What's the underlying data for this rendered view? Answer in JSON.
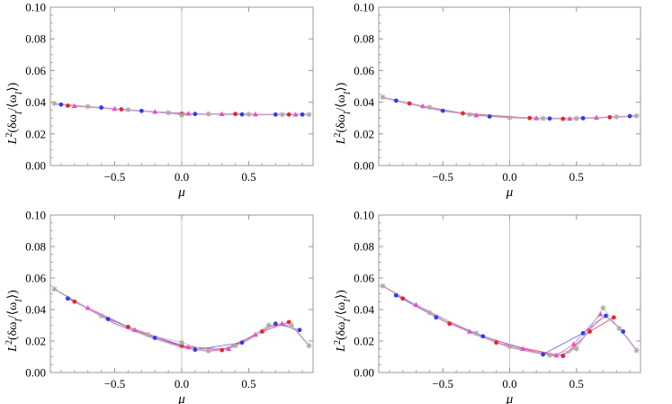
{
  "chart_data": [
    {
      "panel": "top-left",
      "type": "line",
      "xlabel": "μ",
      "ylabel": "L²(δω_I/⟨ω_I⟩)",
      "xlim": [
        -0.98,
        0.98
      ],
      "ylim": [
        0.0,
        0.1
      ],
      "xticks": [
        "-0.5",
        "0.0",
        "0.5"
      ],
      "yticks": [
        "0.00",
        "0.02",
        "0.04",
        "0.06",
        "0.08",
        "0.10"
      ],
      "curve": {
        "x": [
          -0.95,
          -0.75,
          -0.5,
          -0.25,
          0.0,
          0.25,
          0.5,
          0.75,
          0.95
        ],
        "y": [
          0.039,
          0.0375,
          0.0357,
          0.0342,
          0.0325,
          0.0325,
          0.0322,
          0.0322,
          0.0322
        ]
      },
      "series": [
        {
          "name": "red",
          "color": "#e8262b",
          "x": [
            -0.85,
            -0.45,
            0.0,
            0.4,
            0.8
          ],
          "y": [
            0.0378,
            0.0355,
            0.0327,
            0.0326,
            0.0322
          ]
        },
        {
          "name": "blue",
          "color": "#2b3ff0",
          "x": [
            -0.9,
            -0.6,
            -0.3,
            0.1,
            0.45,
            0.7,
            0.9
          ],
          "y": [
            0.0385,
            0.0366,
            0.0345,
            0.0326,
            0.0323,
            0.0322,
            0.0322
          ]
        },
        {
          "name": "magenta",
          "color": "#e64fd0",
          "x": [
            -0.8,
            -0.5,
            -0.2,
            0.05,
            0.3,
            0.55,
            0.85
          ],
          "y": [
            0.0376,
            0.0358,
            0.0339,
            0.0328,
            0.0325,
            0.0323,
            0.0322
          ]
        },
        {
          "name": "gray",
          "color": "#aaaaaa",
          "x": [
            -0.95,
            -0.7,
            -0.4,
            -0.1,
            0.0,
            0.2,
            0.5,
            0.75,
            0.95
          ],
          "y": [
            0.0392,
            0.0373,
            0.0352,
            0.0333,
            0.0318,
            0.0326,
            0.0323,
            0.0322,
            0.0322
          ]
        }
      ]
    },
    {
      "panel": "top-right",
      "type": "line",
      "xlabel": "μ",
      "ylabel": "L²(δω_I/⟨ω_I⟩)",
      "xlim": [
        -0.98,
        0.98
      ],
      "ylim": [
        0.0,
        0.1
      ],
      "xticks": [
        "-0.5",
        "0.0",
        "0.5"
      ],
      "yticks": [
        "0.00",
        "0.02",
        "0.04",
        "0.06",
        "0.08",
        "0.10"
      ],
      "curve": {
        "x": [
          -0.95,
          -0.75,
          -0.5,
          -0.25,
          0.0,
          0.25,
          0.5,
          0.75,
          0.95
        ],
        "y": [
          0.043,
          0.039,
          0.0345,
          0.0317,
          0.0303,
          0.0297,
          0.0298,
          0.0305,
          0.0313
        ]
      },
      "series": [
        {
          "name": "red",
          "color": "#e8262b",
          "x": [
            -0.75,
            -0.35,
            0.15,
            0.4,
            0.75
          ],
          "y": [
            0.0392,
            0.033,
            0.03,
            0.0295,
            0.0305
          ]
        },
        {
          "name": "blue",
          "color": "#2b3ff0",
          "x": [
            -0.85,
            -0.5,
            -0.15,
            0.3,
            0.55,
            0.9
          ],
          "y": [
            0.041,
            0.0346,
            0.031,
            0.0297,
            0.0299,
            0.0312
          ]
        },
        {
          "name": "magenta",
          "color": "#e64fd0",
          "x": [
            -0.65,
            -0.25,
            0.2,
            0.45,
            0.65
          ],
          "y": [
            0.0375,
            0.0317,
            0.0299,
            0.0296,
            0.0302
          ]
        },
        {
          "name": "gray",
          "color": "#aaaaaa",
          "x": [
            -0.95,
            -0.6,
            -0.3,
            0.0,
            0.25,
            0.5,
            0.8,
            0.95
          ],
          "y": [
            0.0432,
            0.0368,
            0.0322,
            0.0302,
            0.0298,
            0.0297,
            0.0307,
            0.0314
          ]
        }
      ]
    },
    {
      "panel": "bottom-left",
      "type": "line",
      "xlabel": "μ",
      "ylabel": "L²(δω_I/⟨ω_I⟩)",
      "xlim": [
        -0.98,
        0.98
      ],
      "ylim": [
        0.0,
        0.1
      ],
      "xticks": [
        "-0.5",
        "0.0",
        "0.5"
      ],
      "yticks": [
        "0.00",
        "0.02",
        "0.04",
        "0.06",
        "0.08",
        "0.10"
      ],
      "curve": {
        "x": [
          -0.95,
          -0.75,
          -0.5,
          -0.25,
          0.0,
          0.2,
          0.35,
          0.5,
          0.65,
          0.75,
          0.85,
          0.95
        ],
        "y": [
          0.053,
          0.043,
          0.031,
          0.023,
          0.016,
          0.0135,
          0.015,
          0.021,
          0.029,
          0.031,
          0.027,
          0.017
        ]
      },
      "series": [
        {
          "name": "red",
          "color": "#e8262b",
          "x": [
            -0.8,
            -0.4,
            0.0,
            0.3,
            0.6,
            0.8
          ],
          "y": [
            0.045,
            0.029,
            0.017,
            0.0142,
            0.026,
            0.032
          ]
        },
        {
          "name": "blue",
          "color": "#2b3ff0",
          "x": [
            -0.85,
            -0.55,
            -0.2,
            0.1,
            0.45,
            0.7,
            0.88
          ],
          "y": [
            0.047,
            0.034,
            0.022,
            0.0145,
            0.019,
            0.031,
            0.027
          ]
        },
        {
          "name": "magenta",
          "color": "#e64fd0",
          "x": [
            -0.7,
            -0.35,
            0.05,
            0.35,
            0.55,
            0.75
          ],
          "y": [
            0.041,
            0.027,
            0.016,
            0.015,
            0.024,
            0.031
          ]
        },
        {
          "name": "gray",
          "color": "#aaaaaa",
          "x": [
            -0.95,
            -0.6,
            -0.25,
            0.0,
            0.2,
            0.4,
            0.65,
            0.82,
            0.95
          ],
          "y": [
            0.053,
            0.036,
            0.024,
            0.019,
            0.0138,
            0.017,
            0.03,
            0.03,
            0.017
          ]
        }
      ]
    },
    {
      "panel": "bottom-right",
      "type": "line",
      "xlabel": "μ",
      "ylabel": "L²(δω_I/⟨ω_I⟩)",
      "xlim": [
        -0.98,
        0.98
      ],
      "ylim": [
        0.0,
        0.1
      ],
      "xticks": [
        "-0.5",
        "0.0",
        "0.5"
      ],
      "yticks": [
        "0.00",
        "0.02",
        "0.04",
        "0.06",
        "0.08",
        "0.10"
      ],
      "curve": {
        "x": [
          -0.95,
          -0.75,
          -0.5,
          -0.25,
          0.0,
          0.2,
          0.35,
          0.45,
          0.55,
          0.65,
          0.72,
          0.8,
          0.88,
          0.95
        ],
        "y": [
          0.055,
          0.045,
          0.033,
          0.024,
          0.016,
          0.0125,
          0.0105,
          0.013,
          0.022,
          0.032,
          0.036,
          0.03,
          0.022,
          0.014
        ]
      },
      "series": [
        {
          "name": "red",
          "color": "#e8262b",
          "x": [
            -0.8,
            -0.45,
            -0.1,
            0.4,
            0.6,
            0.78
          ],
          "y": [
            0.047,
            0.031,
            0.019,
            0.0105,
            0.026,
            0.035
          ]
        },
        {
          "name": "blue",
          "color": "#2b3ff0",
          "x": [
            -0.85,
            -0.55,
            -0.2,
            0.25,
            0.55,
            0.72,
            0.85
          ],
          "y": [
            0.049,
            0.035,
            0.023,
            0.0115,
            0.025,
            0.036,
            0.026
          ]
        },
        {
          "name": "magenta",
          "color": "#e64fd0",
          "x": [
            -0.7,
            -0.3,
            0.1,
            0.35,
            0.48,
            0.68
          ],
          "y": [
            0.043,
            0.026,
            0.015,
            0.0108,
            0.018,
            0.037
          ]
        },
        {
          "name": "gray",
          "color": "#aaaaaa",
          "x": [
            -0.95,
            -0.6,
            -0.25,
            0.0,
            0.3,
            0.5,
            0.7,
            0.82,
            0.95
          ],
          "y": [
            0.055,
            0.038,
            0.025,
            0.0165,
            0.011,
            0.015,
            0.041,
            0.028,
            0.014
          ]
        }
      ]
    }
  ]
}
